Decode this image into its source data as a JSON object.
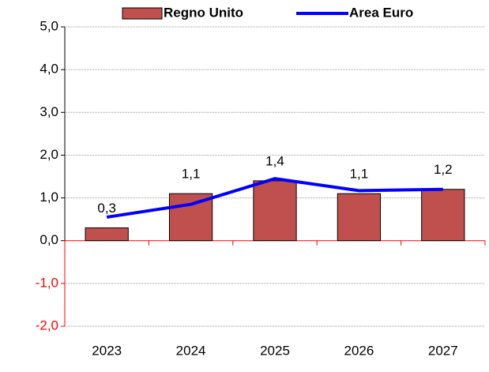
{
  "chart_data": {
    "type": "bar",
    "categories": [
      "2023",
      "2024",
      "2025",
      "2026",
      "2027"
    ],
    "series": [
      {
        "name": "Regno Unito",
        "type": "bar",
        "color": "#c0504d",
        "values": [
          0.3,
          1.1,
          1.4,
          1.1,
          1.2
        ],
        "value_labels": [
          "0,3",
          "1,1",
          "1,4",
          "1,1",
          "1,2"
        ]
      },
      {
        "name": "Area Euro",
        "type": "line",
        "color": "#0000ff",
        "values": [
          0.55,
          0.85,
          1.45,
          1.17,
          1.2
        ]
      }
    ],
    "ylim": [
      -2,
      5
    ],
    "yticks": [
      {
        "value": -2,
        "label": "-2,0"
      },
      {
        "value": -1,
        "label": "-1,0"
      },
      {
        "value": 0,
        "label": "0,0"
      },
      {
        "value": 1,
        "label": "1,0"
      },
      {
        "value": 2,
        "label": "2,0"
      },
      {
        "value": 3,
        "label": "3,0"
      },
      {
        "value": 4,
        "label": "4,0"
      },
      {
        "value": 5,
        "label": "5,0"
      }
    ],
    "grid": true,
    "legend": "top",
    "negative_tick_color": "#ff0000"
  }
}
